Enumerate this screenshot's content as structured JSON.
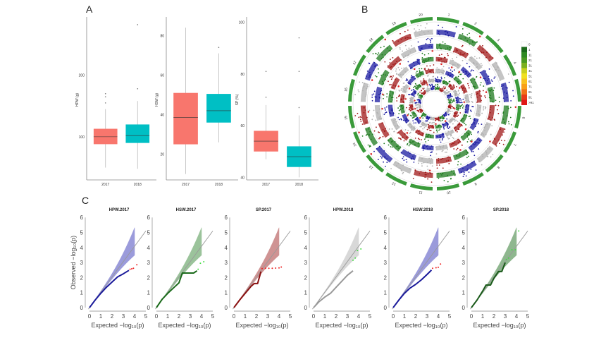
{
  "panel_labels": {
    "a": "A",
    "b": "B",
    "c": "C"
  },
  "chart_data": [
    {
      "type": "box",
      "panel": "A",
      "ylabel": "HPW (g)",
      "categories": [
        "2017",
        "2018"
      ],
      "yticks": [
        100,
        200
      ],
      "ylim": [
        30,
        290
      ],
      "colors": [
        "#f8766d",
        "#00bfc4"
      ],
      "boxes": [
        {
          "q1": 88,
          "median": 100,
          "q3": 113,
          "whisker_low": 50,
          "whisker_high": 145,
          "outliers": [
            155,
            165,
            170
          ]
        },
        {
          "q1": 90,
          "median": 102,
          "q3": 120,
          "whisker_low": 48,
          "whisker_high": 158,
          "outliers": [
            178,
            282
          ]
        }
      ]
    },
    {
      "type": "box",
      "panel": "A",
      "ylabel": "HSW (g)",
      "categories": [
        "2017",
        "2018"
      ],
      "yticks": [
        20,
        40,
        60,
        80
      ],
      "ylim": [
        7,
        88
      ],
      "colors": [
        "#f8766d",
        "#00bfc4"
      ],
      "boxes": [
        {
          "q1": 25,
          "median": 38.5,
          "q3": 51,
          "whisker_low": 10,
          "whisker_high": 84,
          "outliers": []
        },
        {
          "q1": 36,
          "median": 42,
          "q3": 50.5,
          "whisker_low": 26,
          "whisker_high": 71,
          "outliers": [
            74
          ]
        }
      ]
    },
    {
      "type": "box",
      "panel": "A",
      "ylabel": "SP (%)",
      "categories": [
        "2017",
        "2018"
      ],
      "yticks": [
        40,
        60,
        80,
        100
      ],
      "ylim": [
        39,
        101
      ],
      "colors": [
        "#f8766d",
        "#00bfc4"
      ],
      "boxes": [
        {
          "q1": 50,
          "median": 54,
          "q3": 58,
          "whisker_low": 47,
          "whisker_high": 68,
          "outliers": [
            71,
            81
          ]
        },
        {
          "q1": 44,
          "median": 48,
          "q3": 52,
          "whisker_low": 40,
          "whisker_high": 64,
          "outliers": [
            67,
            81,
            94
          ]
        }
      ]
    },
    {
      "type": "circos",
      "panel": "B",
      "chromosomes": [
        "1",
        "2",
        "3",
        "4",
        "5",
        "6",
        "7",
        "8",
        "9",
        "10",
        "11",
        "12",
        "13",
        "14",
        "15",
        "16",
        "17",
        "18",
        "19",
        "20"
      ],
      "track_colors": [
        "#1a1aa0",
        "#1e7a1e",
        "#a01818",
        "#b0b0b0"
      ],
      "karyotype_color": "#3a9a3a",
      "legend": {
        "labels": [
          "0",
          "1",
          "11",
          "21",
          "31",
          "41",
          "51",
          "61",
          "71",
          "81",
          "91",
          ">91"
        ],
        "colors": [
          "#ffffff",
          "#1a6a1a",
          "#2e8a22",
          "#4a9a22",
          "#7ab020",
          "#c8d020",
          "#f0e020",
          "#f8c020",
          "#f8a018",
          "#f07018",
          "#e83a18",
          "#e01818"
        ]
      }
    },
    {
      "type": "qq",
      "panel": "C",
      "xlabel": "Expected  −log₁₀(p)",
      "ylabel": "Observed  −log₁₀(p)",
      "xlim": [
        0,
        5
      ],
      "ylim": [
        0,
        6
      ],
      "xticks": [
        0,
        1,
        2,
        3,
        4,
        5
      ],
      "yticks": [
        0,
        1,
        2,
        3,
        4,
        5,
        6
      ],
      "panels": [
        {
          "title": "HPW.2017",
          "color": "#1a1a9a",
          "band": "#7a7ad0",
          "highlight": "#ee2222",
          "line": [
            [
              0,
              0
            ],
            [
              0.5,
              0.5
            ],
            [
              1,
              0.95
            ],
            [
              1.5,
              1.35
            ],
            [
              2,
              1.7
            ],
            [
              2.5,
              2.05
            ],
            [
              3,
              2.25
            ],
            [
              3.5,
              2.48
            ]
          ],
          "points": [
            [
              3.6,
              2.55
            ],
            [
              3.75,
              2.58
            ],
            [
              3.9,
              2.62
            ],
            [
              4.2,
              2.85
            ]
          ]
        },
        {
          "title": "HSW.2017",
          "color": "#1a6a1a",
          "band": "#7ab07a",
          "highlight": "#44dd44",
          "line": [
            [
              0,
              0
            ],
            [
              0.5,
              0.55
            ],
            [
              1,
              0.95
            ],
            [
              1.5,
              1.3
            ],
            [
              2,
              1.65
            ],
            [
              2.3,
              2.3
            ],
            [
              2.8,
              2.3
            ],
            [
              3.3,
              2.3
            ],
            [
              3.6,
              2.45
            ]
          ],
          "points": [
            [
              3.7,
              2.55
            ],
            [
              3.9,
              2.95
            ],
            [
              4.2,
              3.05
            ]
          ]
        },
        {
          "title": "SP.2017",
          "color": "#8a1010",
          "band": "#c07070",
          "highlight": "#ee2222",
          "line": [
            [
              0,
              0
            ],
            [
              0.5,
              0.5
            ],
            [
              1,
              0.95
            ],
            [
              1.5,
              1.4
            ],
            [
              1.8,
              1.6
            ],
            [
              2.1,
              1.6
            ],
            [
              2.4,
              2.4
            ]
          ],
          "points": [
            [
              2.5,
              2.6
            ],
            [
              2.8,
              2.62
            ],
            [
              3.1,
              2.62
            ],
            [
              3.4,
              2.62
            ],
            [
              3.7,
              2.63
            ],
            [
              4.0,
              2.64
            ],
            [
              4.2,
              2.7
            ]
          ]
        },
        {
          "title": "HPW.2018",
          "color": "#999999",
          "band": "#cccccc",
          "highlight": "#44dd44",
          "line": [
            [
              0,
              0
            ],
            [
              0.5,
              0.4
            ],
            [
              1,
              0.7
            ],
            [
              1.5,
              0.95
            ],
            [
              2,
              1.35
            ],
            [
              2.5,
              1.75
            ],
            [
              3,
              2.15
            ],
            [
              3.5,
              2.45
            ]
          ],
          "points": [
            [
              3.5,
              3.15
            ],
            [
              3.7,
              3.3
            ],
            [
              3.9,
              3.8
            ],
            [
              4.2,
              3.9
            ]
          ]
        },
        {
          "title": "HSW.2018",
          "color": "#1a1a9a",
          "band": "#7a7ad0",
          "highlight": "#ee2222",
          "line": [
            [
              0,
              0
            ],
            [
              0.5,
              0.5
            ],
            [
              1,
              0.95
            ],
            [
              1.5,
              1.3
            ],
            [
              2,
              1.55
            ],
            [
              2.5,
              1.85
            ],
            [
              3,
              2.2
            ],
            [
              3.4,
              2.5
            ]
          ],
          "points": [
            [
              3.5,
              2.62
            ],
            [
              3.8,
              2.65
            ],
            [
              4.0,
              2.68
            ],
            [
              4.2,
              2.9
            ]
          ]
        },
        {
          "title": "SP.2018",
          "color": "#1a5a1a",
          "band": "#6aa06a",
          "highlight": "#44dd44",
          "line": [
            [
              0,
              0
            ],
            [
              0.5,
              0.5
            ],
            [
              1,
              1.1
            ],
            [
              1.3,
              1.5
            ],
            [
              1.7,
              1.5
            ],
            [
              2,
              1.95
            ],
            [
              2.4,
              2.4
            ],
            [
              2.7,
              2.4
            ],
            [
              3.0,
              3.0
            ]
          ],
          "points": [
            [
              3.1,
              3.2
            ],
            [
              3.3,
              3.3
            ],
            [
              3.6,
              3.85
            ],
            [
              3.9,
              3.85
            ],
            [
              4.2,
              5.1
            ]
          ]
        }
      ]
    }
  ]
}
